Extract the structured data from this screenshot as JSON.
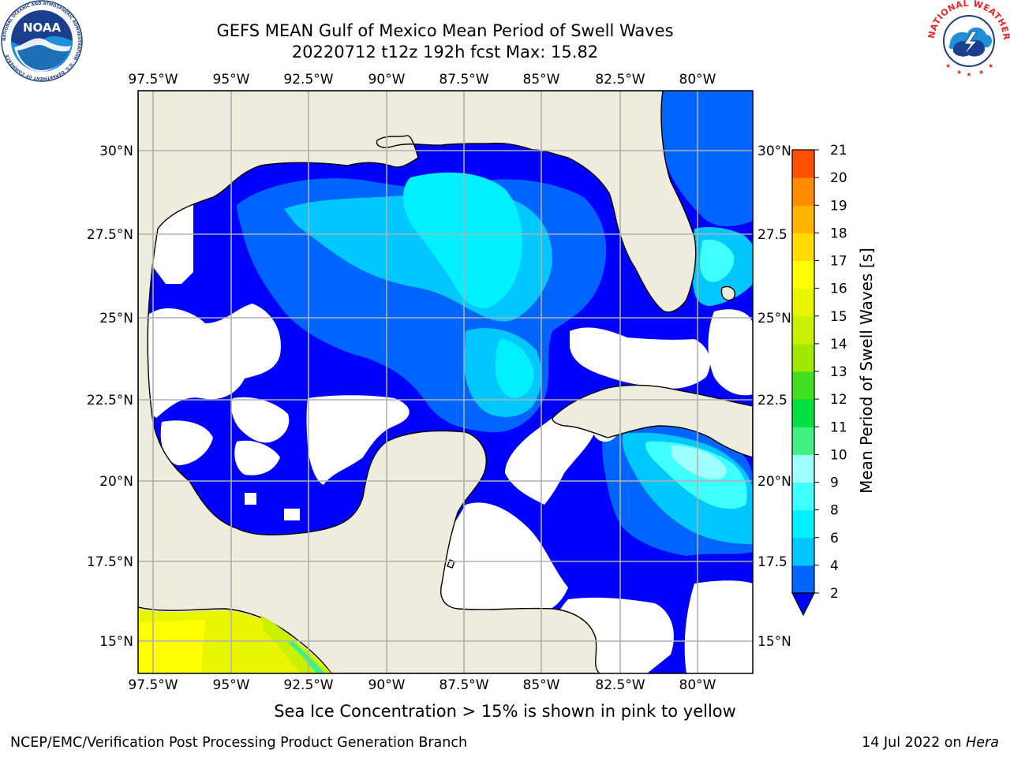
{
  "header": {
    "title_line1": "GEFS MEAN Gulf of Mexico Mean Period of Swell Waves",
    "title_line2": "20220712 t12z 192h fcst   Max: 15.82"
  },
  "map": {
    "lon_ticks": [
      "97.5°W",
      "95°W",
      "92.5°W",
      "90°W",
      "87.5°W",
      "85°W",
      "82.5°W",
      "80°W"
    ],
    "lat_ticks_left": [
      "30°N",
      "27.5°N",
      "25°N",
      "22.5°N",
      "20°N",
      "17.5°N",
      "15°N"
    ],
    "lat_ticks_right": [
      "30°N",
      "27.5",
      "25°N",
      "22.5",
      "20°N",
      "17.5",
      "15°N"
    ],
    "land_color": "#eeecdd",
    "gridline_color": "#b0b0b0"
  },
  "colorbar": {
    "label": "Mean Period of Swell Waves [s]",
    "tick_labels": [
      "2",
      "4",
      "6",
      "8",
      "9",
      "10",
      "11",
      "12",
      "13",
      "14",
      "15",
      "16",
      "17",
      "18",
      "19",
      "20",
      "21"
    ],
    "colors": [
      "#0064ff",
      "#00c8ff",
      "#00f0ff",
      "#40ffff",
      "#a0ffff",
      "#40f080",
      "#00e040",
      "#40e020",
      "#a0e800",
      "#c8f000",
      "#e8f400",
      "#ffff00",
      "#ffdc00",
      "#ffb400",
      "#ff8c00",
      "#ff5000",
      "#ff2000",
      "#ff0000"
    ],
    "under_color": "#0000ff"
  },
  "ice_note": "Sea Ice Concentration > 15% is shown in pink to yellow",
  "footer": {
    "left": "NCEP/EMC/Verification Post Processing Product Generation Branch",
    "right_prefix": "14 Jul 2022 on ",
    "right_host": "Hera"
  },
  "logos": {
    "noaa_text": "NOAA",
    "noaa_ring_text": "NATIONAL OCEANIC AND ATMOSPHERIC ADMINISTRATION · U.S. DEPARTMENT OF COMMERCE",
    "nws_ring_text": "NATIONAL WEATHER SERVICE",
    "noaa_blue": "#1f6fb5",
    "nws_red": "#e8262b"
  }
}
